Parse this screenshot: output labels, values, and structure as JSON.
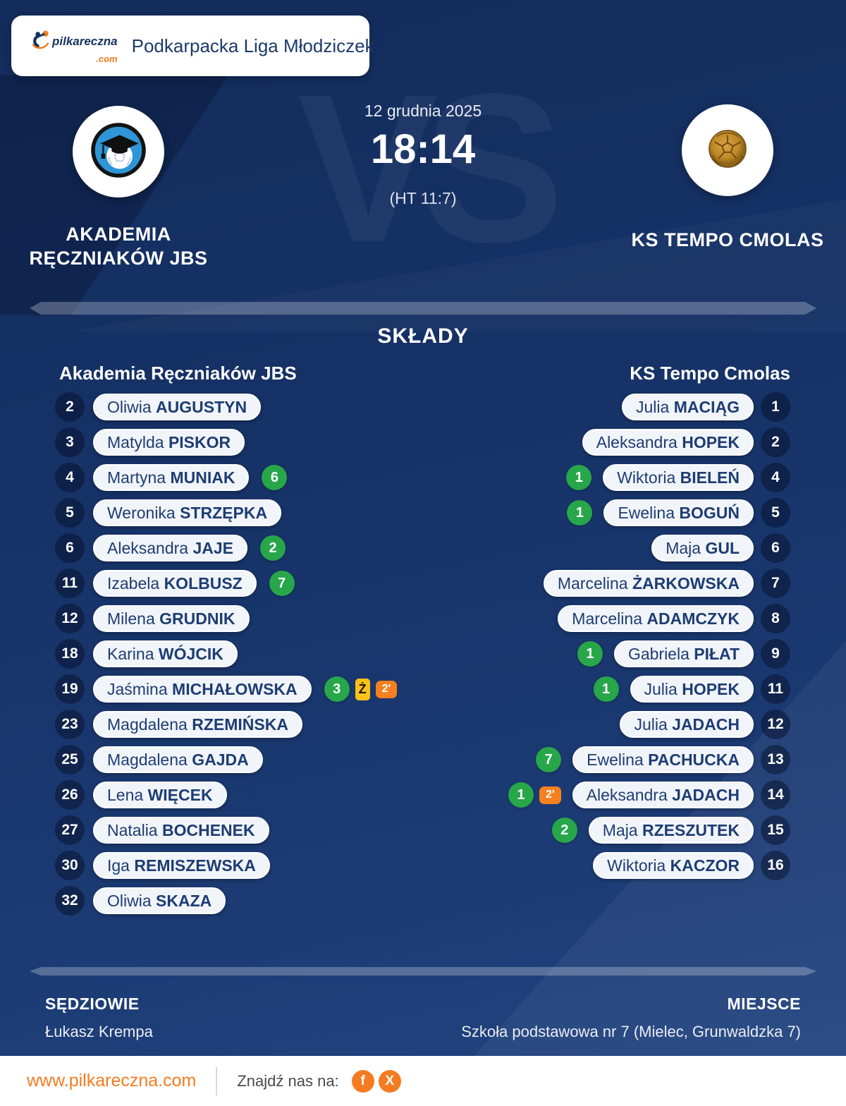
{
  "site": {
    "logo_text": "pilkareczna",
    "logo_tld": ".com",
    "league_title": "Podkarpacka Liga Młodziczek"
  },
  "match": {
    "date": "12 grudnia 2025",
    "score": "18:14",
    "halftime": "(HT 11:7)",
    "watermark": "VS",
    "home_team": {
      "name_line1": "AKADEMIA",
      "name_line2": "RĘCZNIAKÓW JBS"
    },
    "away_team": {
      "name": "KS TEMPO CMOLAS"
    }
  },
  "lineups": {
    "section_title": "SKŁADY",
    "home_header": "Akademia Ręczniaków JBS",
    "away_header": "KS Tempo Cmolas",
    "badges": {
      "yellow_card_label": "Ż"
    },
    "home_players": [
      {
        "num": "2",
        "first": "Oliwia",
        "last": "AUGUSTYN"
      },
      {
        "num": "3",
        "first": "Matylda",
        "last": "PISKOR"
      },
      {
        "num": "4",
        "first": "Martyna",
        "last": "MUNIAK",
        "goals": "6"
      },
      {
        "num": "5",
        "first": "Weronika",
        "last": "STRZĘPKA"
      },
      {
        "num": "6",
        "first": "Aleksandra",
        "last": "JAJE",
        "goals": "2"
      },
      {
        "num": "11",
        "first": "Izabela",
        "last": "KOLBUSZ",
        "goals": "7"
      },
      {
        "num": "12",
        "first": "Milena",
        "last": "GRUDNIK"
      },
      {
        "num": "18",
        "first": "Karina",
        "last": "WÓJCIK"
      },
      {
        "num": "19",
        "first": "Jaśmina",
        "last": "MICHAŁOWSKA",
        "goals": "3",
        "yellow_card": true,
        "suspension": "2'"
      },
      {
        "num": "23",
        "first": "Magdalena",
        "last": "RZEMIŃSKA"
      },
      {
        "num": "25",
        "first": "Magdalena",
        "last": "GAJDA"
      },
      {
        "num": "26",
        "first": "Lena",
        "last": "WIĘCEK"
      },
      {
        "num": "27",
        "first": "Natalia",
        "last": "BOCHENEK"
      },
      {
        "num": "30",
        "first": "Iga",
        "last": "REMISZEWSKA"
      },
      {
        "num": "32",
        "first": "Oliwia",
        "last": "SKAZA"
      }
    ],
    "away_players": [
      {
        "num": "1",
        "first": "Julia",
        "last": "MACIĄG"
      },
      {
        "num": "2",
        "first": "Aleksandra",
        "last": "HOPEK"
      },
      {
        "num": "4",
        "first": "Wiktoria",
        "last": "BIELEŃ",
        "goals": "1"
      },
      {
        "num": "5",
        "first": "Ewelina",
        "last": "BOGUŃ",
        "goals": "1"
      },
      {
        "num": "6",
        "first": "Maja",
        "last": "GUL"
      },
      {
        "num": "7",
        "first": "Marcelina",
        "last": "ŻARKOWSKA"
      },
      {
        "num": "8",
        "first": "Marcelina",
        "last": "ADAMCZYK"
      },
      {
        "num": "9",
        "first": "Gabriela",
        "last": "PIŁAT",
        "goals": "1"
      },
      {
        "num": "11",
        "first": "Julia",
        "last": "HOPEK",
        "goals": "1"
      },
      {
        "num": "12",
        "first": "Julia",
        "last": "JADACH"
      },
      {
        "num": "13",
        "first": "Ewelina",
        "last": "PACHUCKA",
        "goals": "7"
      },
      {
        "num": "14",
        "first": "Aleksandra",
        "last": "JADACH",
        "goals": "1",
        "suspension": "2'"
      },
      {
        "num": "15",
        "first": "Maja",
        "last": "RZESZUTEK",
        "goals": "2"
      },
      {
        "num": "16",
        "first": "Wiktoria",
        "last": "KACZOR"
      }
    ]
  },
  "footer": {
    "referees_label": "SĘDZIOWIE",
    "referees": "Łukasz Krempa",
    "venue_label": "MIEJSCE",
    "venue": "Szkoła podstawowa nr 7 (Mielec, Grunwaldzka 7)"
  },
  "bottom_bar": {
    "url": "www.pilkareczna.com",
    "find_us_label": "Znajdź nas na:",
    "facebook_label": "f",
    "x_label": "X"
  },
  "colors": {
    "accent_orange": "#f47b20",
    "goal_green": "#27a74a",
    "yellow_card": "#fcc316",
    "suspension_orange": "#f6801f",
    "navy": "#1b3a6b"
  }
}
